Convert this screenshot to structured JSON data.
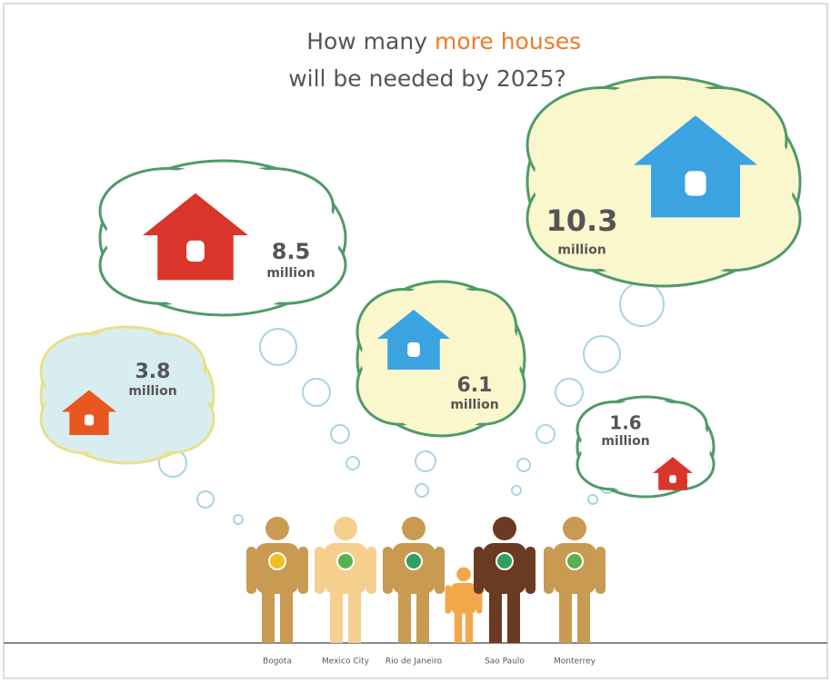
{
  "title": {
    "line1_start": "How many",
    "line1_highlight": "more houses",
    "line2": "will be needed by 2025?"
  },
  "bubbles": [
    {
      "value": "3.8",
      "unit": "million"
    },
    {
      "value": "8.5",
      "unit": "million"
    },
    {
      "value": "6.1",
      "unit": "million"
    },
    {
      "value": "10.3",
      "unit": "million"
    },
    {
      "value": "1.6",
      "unit": "million"
    }
  ],
  "people": [
    {
      "label": "Bogota"
    },
    {
      "label": "Mexico City"
    },
    {
      "label": "Rio de Janeiro"
    },
    {
      "label": "Sao Paulo"
    },
    {
      "label": "Monterrey"
    }
  ]
}
